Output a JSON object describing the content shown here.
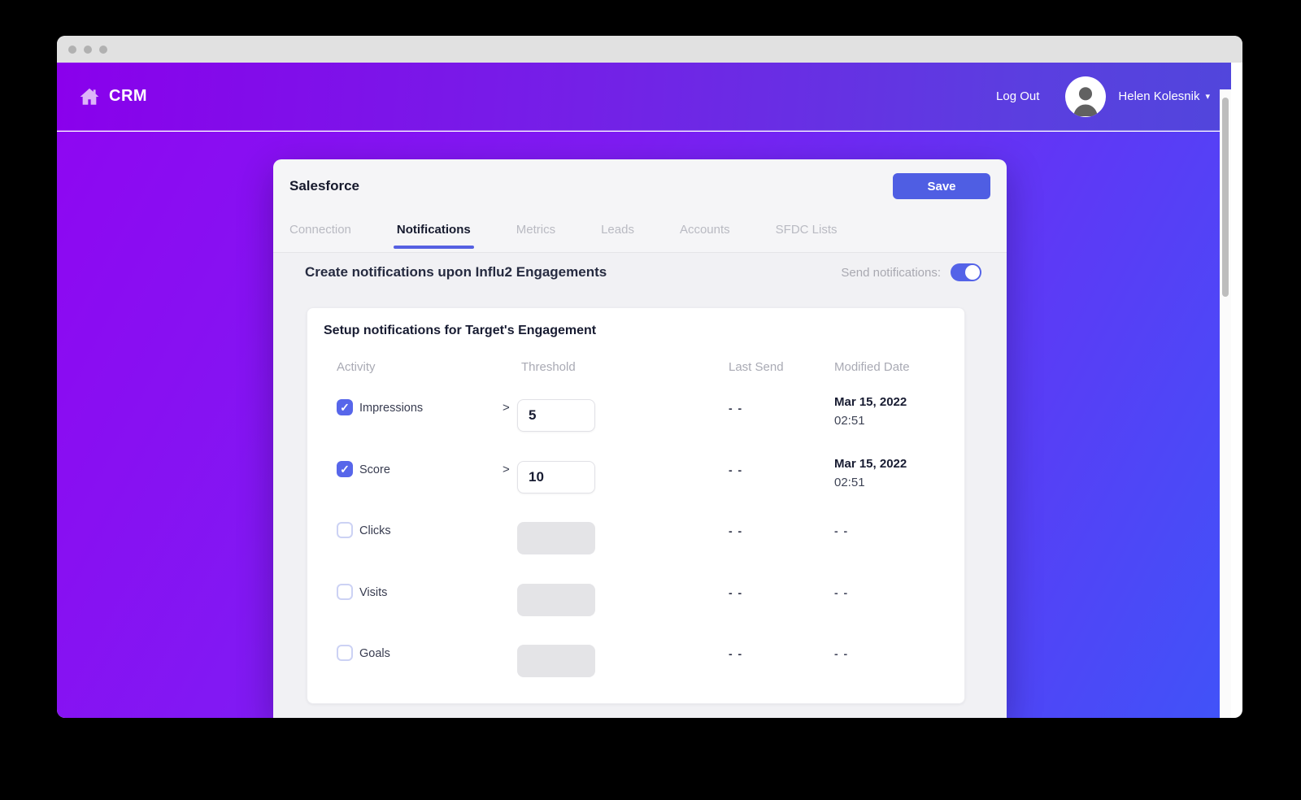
{
  "colors": {
    "accent": "#4f5ee3",
    "header_gradient_start": "#8a00ec",
    "header_gradient_end": "#5146dc",
    "main_gradient_start": "#8e07f2",
    "main_gradient_end": "#4053f8",
    "panel_bg": "#f1f1f4",
    "card_bg": "#ffffff"
  },
  "header": {
    "brand": "CRM",
    "logout_label": "Log Out",
    "user_name": "Helen Kolesnik",
    "home_icon": "home-icon",
    "avatar_icon": "person-silhouette-icon",
    "caret_icon": "chevron-down-icon",
    "caret_glyph": "▾"
  },
  "panel": {
    "title": "Salesforce",
    "save_label": "Save",
    "tabs": [
      {
        "label": "Connection",
        "active": false
      },
      {
        "label": "Notifications",
        "active": true
      },
      {
        "label": "Metrics",
        "active": false
      },
      {
        "label": "Leads",
        "active": false
      },
      {
        "label": "Accounts",
        "active": false
      },
      {
        "label": "SFDC Lists",
        "active": false
      }
    ]
  },
  "notifications": {
    "heading": "Create notifications upon Influ2 Engagements",
    "toggle_label": "Send notifications:",
    "toggle_on": true,
    "card_title": "Setup notifications for Target's Engagement",
    "columns": [
      "Activity",
      "Threshold",
      "Last Send",
      "Modified Date"
    ],
    "rows": [
      {
        "activity": "Impressions",
        "checked": true,
        "comparator": ">",
        "threshold": "5",
        "last_send": "- -",
        "modified_date": "Mar 15, 2022",
        "modified_time": "02:51"
      },
      {
        "activity": "Score",
        "checked": true,
        "comparator": ">",
        "threshold": "10",
        "last_send": "- -",
        "modified_date": "Mar 15, 2022",
        "modified_time": "02:51"
      },
      {
        "activity": "Clicks",
        "checked": false,
        "comparator": "",
        "threshold": null,
        "last_send": "- -",
        "modified_date": "- -",
        "modified_time": ""
      },
      {
        "activity": "Visits",
        "checked": false,
        "comparator": "",
        "threshold": null,
        "last_send": "- -",
        "modified_date": "- -",
        "modified_time": ""
      },
      {
        "activity": "Goals",
        "checked": false,
        "comparator": "",
        "threshold": null,
        "last_send": "- -",
        "modified_date": "- -",
        "modified_time": ""
      }
    ]
  }
}
